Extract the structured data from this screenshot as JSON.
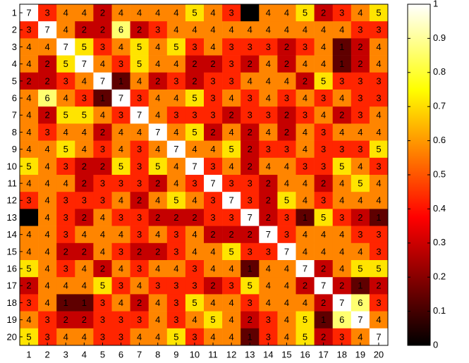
{
  "chart_data": {
    "type": "heatmap",
    "x_labels": [
      1,
      2,
      3,
      4,
      5,
      6,
      7,
      8,
      9,
      10,
      11,
      12,
      13,
      14,
      15,
      16,
      17,
      18,
      19,
      20
    ],
    "y_labels": [
      1,
      2,
      3,
      4,
      5,
      6,
      7,
      8,
      9,
      10,
      11,
      12,
      13,
      14,
      15,
      16,
      17,
      18,
      19,
      20
    ],
    "values": [
      [
        7,
        3,
        4,
        4,
        2,
        4,
        4,
        4,
        4,
        5,
        4,
        3,
        0,
        4,
        4,
        5,
        2,
        3,
        4,
        5
      ],
      [
        3,
        7,
        4,
        2,
        2,
        6,
        2,
        3,
        4,
        4,
        4,
        4,
        4,
        4,
        4,
        4,
        4,
        4,
        3,
        3
      ],
      [
        4,
        4,
        7,
        5,
        3,
        4,
        5,
        4,
        5,
        3,
        4,
        3,
        3,
        3,
        2,
        3,
        4,
        1,
        2,
        4
      ],
      [
        4,
        2,
        5,
        7,
        4,
        3,
        5,
        4,
        4,
        2,
        2,
        3,
        2,
        4,
        2,
        4,
        4,
        1,
        2,
        4
      ],
      [
        2,
        2,
        3,
        4,
        7,
        1,
        4,
        2,
        3,
        2,
        3,
        3,
        4,
        4,
        4,
        2,
        5,
        3,
        3,
        3
      ],
      [
        4,
        6,
        4,
        3,
        1,
        7,
        3,
        4,
        4,
        5,
        3,
        4,
        3,
        4,
        3,
        4,
        3,
        4,
        3,
        3
      ],
      [
        4,
        2,
        5,
        5,
        4,
        3,
        7,
        4,
        3,
        3,
        3,
        2,
        3,
        3,
        2,
        3,
        4,
        2,
        3,
        4
      ],
      [
        4,
        3,
        4,
        4,
        2,
        4,
        4,
        7,
        4,
        5,
        2,
        4,
        2,
        4,
        2,
        4,
        3,
        4,
        4,
        4
      ],
      [
        4,
        4,
        5,
        4,
        3,
        4,
        3,
        4,
        7,
        4,
        4,
        5,
        2,
        3,
        3,
        4,
        3,
        3,
        3,
        5
      ],
      [
        5,
        4,
        3,
        2,
        2,
        5,
        3,
        5,
        4,
        7,
        3,
        4,
        2,
        4,
        4,
        3,
        3,
        5,
        4,
        3
      ],
      [
        4,
        4,
        4,
        2,
        3,
        3,
        3,
        2,
        4,
        3,
        7,
        3,
        3,
        2,
        4,
        4,
        2,
        4,
        5,
        4
      ],
      [
        3,
        4,
        3,
        3,
        3,
        4,
        2,
        4,
        5,
        4,
        3,
        7,
        3,
        2,
        5,
        4,
        3,
        4,
        4,
        4
      ],
      [
        0,
        4,
        3,
        2,
        4,
        3,
        3,
        2,
        2,
        2,
        3,
        3,
        7,
        2,
        3,
        1,
        5,
        3,
        2,
        1
      ],
      [
        4,
        4,
        3,
        4,
        4,
        4,
        3,
        4,
        3,
        4,
        2,
        2,
        2,
        7,
        3,
        4,
        4,
        4,
        3,
        3
      ],
      [
        4,
        4,
        2,
        2,
        4,
        3,
        2,
        2,
        3,
        4,
        4,
        5,
        3,
        3,
        7,
        4,
        4,
        4,
        4,
        3
      ],
      [
        5,
        4,
        3,
        4,
        2,
        4,
        3,
        4,
        4,
        3,
        4,
        4,
        1,
        4,
        4,
        7,
        2,
        4,
        5,
        5
      ],
      [
        2,
        4,
        4,
        4,
        5,
        3,
        4,
        3,
        3,
        3,
        2,
        3,
        5,
        4,
        4,
        2,
        7,
        2,
        1,
        2
      ],
      [
        3,
        4,
        1,
        1,
        3,
        4,
        2,
        4,
        3,
        5,
        4,
        4,
        3,
        4,
        4,
        4,
        2,
        7,
        6,
        3
      ],
      [
        4,
        3,
        2,
        2,
        3,
        3,
        3,
        4,
        3,
        4,
        5,
        4,
        2,
        3,
        4,
        5,
        1,
        6,
        7,
        4
      ],
      [
        5,
        3,
        4,
        4,
        3,
        3,
        4,
        4,
        5,
        3,
        4,
        4,
        1,
        3,
        4,
        5,
        2,
        3,
        4,
        7
      ]
    ],
    "color_values": [
      [
        1,
        0.43,
        0.57,
        0.57,
        0.29,
        0.57,
        0.57,
        0.57,
        0.57,
        0.71,
        0.57,
        0.43,
        0,
        0.57,
        0.57,
        0.71,
        0.29,
        0.43,
        0.57,
        0.71
      ],
      [
        0.43,
        1,
        0.57,
        0.29,
        0.29,
        0.86,
        0.29,
        0.43,
        0.57,
        0.57,
        0.57,
        0.57,
        0.57,
        0.57,
        0.57,
        0.57,
        0.57,
        0.57,
        0.43,
        0.43
      ],
      [
        0.57,
        0.57,
        1,
        0.71,
        0.43,
        0.57,
        0.71,
        0.57,
        0.71,
        0.43,
        0.57,
        0.43,
        0.43,
        0.43,
        0.29,
        0.43,
        0.57,
        0.14,
        0.29,
        0.57
      ],
      [
        0.57,
        0.29,
        0.71,
        1,
        0.57,
        0.43,
        0.71,
        0.57,
        0.57,
        0.29,
        0.29,
        0.43,
        0.29,
        0.57,
        0.29,
        0.57,
        0.57,
        0.14,
        0.29,
        0.57
      ],
      [
        0.29,
        0.29,
        0.43,
        0.57,
        1,
        0.14,
        0.57,
        0.29,
        0.43,
        0.29,
        0.43,
        0.43,
        0.57,
        0.57,
        0.57,
        0.29,
        0.71,
        0.43,
        0.43,
        0.43
      ],
      [
        0.57,
        0.86,
        0.57,
        0.43,
        0.14,
        1,
        0.43,
        0.57,
        0.57,
        0.71,
        0.43,
        0.57,
        0.43,
        0.57,
        0.43,
        0.57,
        0.43,
        0.57,
        0.43,
        0.43
      ],
      [
        0.57,
        0.29,
        0.71,
        0.71,
        0.57,
        0.43,
        1,
        0.57,
        0.43,
        0.43,
        0.43,
        0.29,
        0.43,
        0.43,
        0.29,
        0.43,
        0.57,
        0.29,
        0.43,
        0.57
      ],
      [
        0.57,
        0.43,
        0.57,
        0.57,
        0.29,
        0.57,
        0.57,
        1,
        0.57,
        0.71,
        0.29,
        0.57,
        0.29,
        0.57,
        0.29,
        0.57,
        0.43,
        0.57,
        0.57,
        0.57
      ],
      [
        0.57,
        0.57,
        0.71,
        0.57,
        0.43,
        0.57,
        0.43,
        0.57,
        1,
        0.57,
        0.57,
        0.71,
        0.29,
        0.43,
        0.43,
        0.57,
        0.43,
        0.43,
        0.43,
        0.71
      ],
      [
        0.71,
        0.57,
        0.43,
        0.29,
        0.29,
        0.71,
        0.43,
        0.71,
        0.57,
        1,
        0.43,
        0.57,
        0.29,
        0.57,
        0.57,
        0.43,
        0.43,
        0.71,
        0.57,
        0.43
      ],
      [
        0.57,
        0.57,
        0.57,
        0.29,
        0.43,
        0.43,
        0.43,
        0.29,
        0.57,
        0.43,
        1,
        0.43,
        0.43,
        0.29,
        0.57,
        0.57,
        0.29,
        0.57,
        0.71,
        0.57
      ],
      [
        0.43,
        0.57,
        0.43,
        0.43,
        0.43,
        0.57,
        0.29,
        0.57,
        0.71,
        0.57,
        0.43,
        1,
        0.43,
        0.29,
        0.71,
        0.57,
        0.43,
        0.57,
        0.57,
        0.57
      ],
      [
        0,
        0.57,
        0.43,
        0.29,
        0.57,
        0.43,
        0.43,
        0.29,
        0.29,
        0.29,
        0.43,
        0.43,
        1,
        0.29,
        0.43,
        0.14,
        0.71,
        0.43,
        0.29,
        0.14
      ],
      [
        0.57,
        0.57,
        0.43,
        0.57,
        0.57,
        0.57,
        0.43,
        0.57,
        0.43,
        0.57,
        0.29,
        0.29,
        0.29,
        1,
        0.43,
        0.57,
        0.57,
        0.57,
        0.43,
        0.43
      ],
      [
        0.57,
        0.57,
        0.29,
        0.29,
        0.57,
        0.43,
        0.29,
        0.29,
        0.43,
        0.57,
        0.57,
        0.71,
        0.43,
        0.43,
        1,
        0.57,
        0.57,
        0.57,
        0.57,
        0.43
      ],
      [
        0.71,
        0.57,
        0.43,
        0.57,
        0.29,
        0.57,
        0.43,
        0.57,
        0.57,
        0.43,
        0.57,
        0.57,
        0.14,
        0.57,
        0.57,
        1,
        0.29,
        0.57,
        0.71,
        0.71
      ],
      [
        0.29,
        0.57,
        0.57,
        0.57,
        0.71,
        0.43,
        0.57,
        0.43,
        0.43,
        0.43,
        0.29,
        0.43,
        0.71,
        0.57,
        0.57,
        0.29,
        1,
        0.29,
        0.14,
        0.29
      ],
      [
        0.43,
        0.57,
        0.14,
        0.14,
        0.43,
        0.57,
        0.29,
        0.57,
        0.43,
        0.71,
        0.57,
        0.57,
        0.43,
        0.57,
        0.57,
        0.57,
        0.29,
        1,
        0.86,
        0.43
      ],
      [
        0.57,
        0.43,
        0.29,
        0.29,
        0.43,
        0.43,
        0.43,
        0.57,
        0.43,
        0.57,
        0.71,
        0.57,
        0.29,
        0.43,
        0.57,
        0.71,
        0.14,
        0.86,
        1,
        0.57
      ],
      [
        0.71,
        0.43,
        0.57,
        0.57,
        0.43,
        0.43,
        0.57,
        0.57,
        0.71,
        0.43,
        0.57,
        0.57,
        0.14,
        0.43,
        0.57,
        0.71,
        0.29,
        0.43,
        0.57,
        1
      ]
    ],
    "clim": [
      0,
      1
    ],
    "cticks": [
      0,
      0.1,
      0.2,
      0.3,
      0.4,
      0.5,
      0.6,
      0.7,
      0.8,
      0.9,
      1
    ],
    "colormap": "hot"
  }
}
